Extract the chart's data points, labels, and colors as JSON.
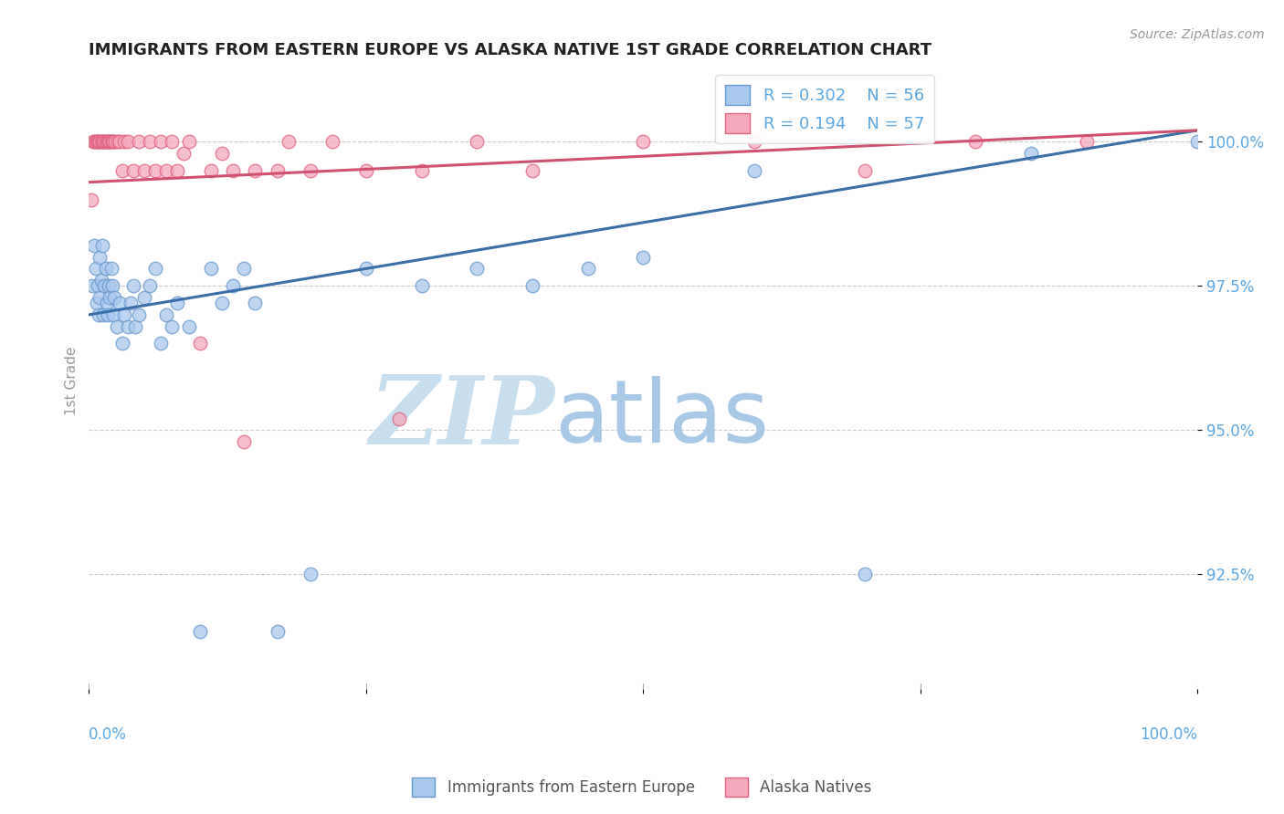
{
  "title": "IMMIGRANTS FROM EASTERN EUROPE VS ALASKA NATIVE 1ST GRADE CORRELATION CHART",
  "source_text": "Source: ZipAtlas.com",
  "ylabel": "1st Grade",
  "x_label_bottom_left": "0.0%",
  "x_label_bottom_right": "100.0%",
  "xlim": [
    0.0,
    100.0
  ],
  "ylim": [
    90.5,
    101.2
  ],
  "yticks": [
    92.5,
    95.0,
    97.5,
    100.0
  ],
  "ytick_labels": [
    "92.5%",
    "95.0%",
    "97.5%",
    "100.0%"
  ],
  "legend_r1": "R = 0.302",
  "legend_n1": "N = 56",
  "legend_r2": "R = 0.194",
  "legend_n2": "N = 57",
  "blue_color": "#A8C8EE",
  "pink_color": "#F4A8BC",
  "blue_edge_color": "#6699CC",
  "pink_edge_color": "#E06080",
  "blue_line_color": "#3A6EA8",
  "pink_line_color": "#D05070",
  "axis_color": "#5BA8E5",
  "watermark_zip_color": "#C8DFF0",
  "watermark_atlas_color": "#A8C8E8",
  "blue_line_start_y": 97.0,
  "blue_line_end_y": 100.2,
  "pink_line_start_y": 99.3,
  "pink_line_end_y": 100.2,
  "blue_scatter_x": [
    0.3,
    0.5,
    0.6,
    0.7,
    0.8,
    0.9,
    1.0,
    1.0,
    1.1,
    1.2,
    1.3,
    1.4,
    1.5,
    1.6,
    1.7,
    1.8,
    1.9,
    2.0,
    2.1,
    2.2,
    2.3,
    2.5,
    2.8,
    3.0,
    3.2,
    3.5,
    3.8,
    4.0,
    4.2,
    4.5,
    5.0,
    5.5,
    6.0,
    6.5,
    7.0,
    7.5,
    8.0,
    9.0,
    10.0,
    11.0,
    12.0,
    13.0,
    14.0,
    15.0,
    17.0,
    20.0,
    25.0,
    30.0,
    35.0,
    40.0,
    45.0,
    50.0,
    60.0,
    70.0,
    85.0,
    100.0
  ],
  "blue_scatter_y": [
    97.5,
    98.2,
    97.8,
    97.2,
    97.5,
    97.0,
    97.3,
    98.0,
    97.6,
    98.2,
    97.0,
    97.5,
    97.8,
    97.2,
    97.0,
    97.5,
    97.3,
    97.8,
    97.5,
    97.0,
    97.3,
    96.8,
    97.2,
    96.5,
    97.0,
    96.8,
    97.2,
    97.5,
    96.8,
    97.0,
    97.3,
    97.5,
    97.8,
    96.5,
    97.0,
    96.8,
    97.2,
    96.8,
    91.5,
    97.8,
    97.2,
    97.5,
    97.8,
    97.2,
    91.5,
    92.5,
    97.8,
    97.5,
    97.8,
    97.5,
    97.8,
    98.0,
    99.5,
    92.5,
    99.8,
    100.0
  ],
  "pink_scatter_x": [
    0.2,
    0.4,
    0.5,
    0.6,
    0.7,
    0.8,
    0.9,
    1.0,
    1.1,
    1.2,
    1.3,
    1.4,
    1.5,
    1.6,
    1.7,
    1.8,
    1.9,
    2.0,
    2.1,
    2.2,
    2.4,
    2.6,
    2.8,
    3.0,
    3.2,
    3.5,
    4.0,
    4.5,
    5.0,
    5.5,
    6.0,
    6.5,
    7.0,
    7.5,
    8.0,
    8.5,
    9.0,
    10.0,
    11.0,
    12.0,
    13.0,
    14.0,
    15.0,
    17.0,
    18.0,
    20.0,
    22.0,
    25.0,
    28.0,
    30.0,
    35.0,
    40.0,
    50.0,
    60.0,
    70.0,
    80.0,
    90.0
  ],
  "pink_scatter_y": [
    99.0,
    100.0,
    100.0,
    100.0,
    100.0,
    100.0,
    100.0,
    100.0,
    100.0,
    100.0,
    100.0,
    100.0,
    100.0,
    100.0,
    100.0,
    100.0,
    100.0,
    100.0,
    100.0,
    100.0,
    100.0,
    100.0,
    100.0,
    99.5,
    100.0,
    100.0,
    99.5,
    100.0,
    99.5,
    100.0,
    99.5,
    100.0,
    99.5,
    100.0,
    99.5,
    99.8,
    100.0,
    96.5,
    99.5,
    99.8,
    99.5,
    94.8,
    99.5,
    99.5,
    100.0,
    99.5,
    100.0,
    99.5,
    95.2,
    99.5,
    100.0,
    99.5,
    100.0,
    100.0,
    99.5,
    100.0,
    100.0
  ]
}
